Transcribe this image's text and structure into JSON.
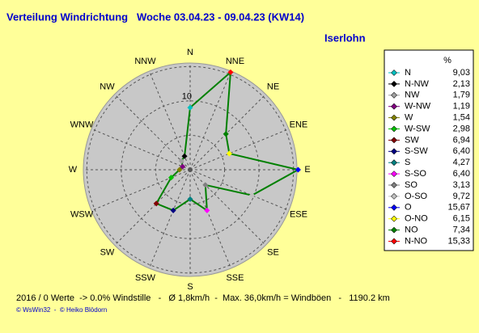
{
  "chart_data": {
    "type": "radar",
    "title": "Verteilung Windrichtung   Woche 03.04.23 - 09.04.23 (KW14)",
    "subtitle": "Iserlohn",
    "direction_labels": [
      "N",
      "NNE",
      "NE",
      "ENE",
      "E",
      "ESE",
      "SE",
      "SSE",
      "S",
      "SSW",
      "SW",
      "WSW",
      "W",
      "WNW",
      "NW",
      "NNW"
    ],
    "rlim": [
      0,
      15.5
    ],
    "rgrid": [
      5,
      10,
      15
    ],
    "rtick": 10,
    "line_color": "#008000",
    "legend_header": "%",
    "categories": [
      "N",
      "N-NW",
      "NW",
      "W-NW",
      "W",
      "W-SW",
      "SW",
      "S-SW",
      "S",
      "S-SO",
      "SO",
      "O-SO",
      "O",
      "O-NO",
      "NO",
      "N-NO"
    ],
    "values": [
      9.03,
      2.13,
      1.79,
      1.19,
      1.54,
      2.98,
      6.94,
      6.4,
      4.27,
      6.4,
      3.13,
      9.72,
      15.67,
      6.15,
      7.34,
      15.33
    ],
    "value_labels": [
      "9,03",
      "2,13",
      "1,79",
      "1,19",
      "1,54",
      "2,98",
      "6,94",
      "6,40",
      "4,27",
      "6,40",
      "3,13",
      "9,72",
      "15,67",
      "6,15",
      "7,34",
      "15,33"
    ],
    "colors": [
      "#00c0c0",
      "#000000",
      "#a0a0a0",
      "#800080",
      "#808000",
      "#00c000",
      "#800000",
      "#000080",
      "#008080",
      "#ff00ff",
      "#808080",
      "#c0c0c0",
      "#0000ff",
      "#ffff00",
      "#008000",
      "#ff0000"
    ],
    "footer": "2016 / 0 Werte  -> 0.0% Windstille   -   Ø 1,8km/h  -  Max. 36,0km/h = Windböen   -   1190.2 km",
    "credits": "© WsWin32  -  © Heiko Blödorn"
  }
}
